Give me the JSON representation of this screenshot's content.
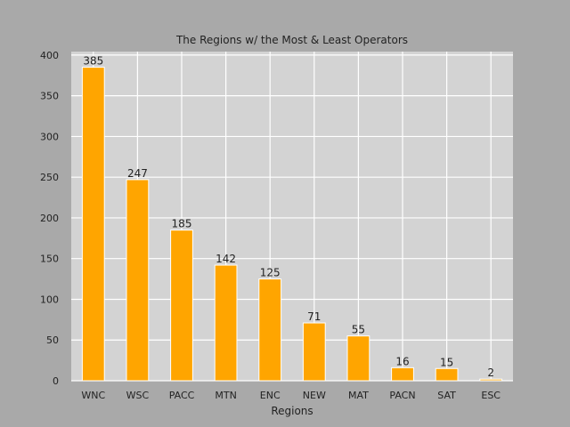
{
  "chart_data": {
    "type": "bar",
    "title": "The Regions w/ the Most & Least Operators",
    "xlabel": "Regions",
    "ylabel": "",
    "categories": [
      "WNC",
      "WSC",
      "PACC",
      "MTN",
      "ENC",
      "NEW",
      "MAT",
      "PACN",
      "SAT",
      "ESC"
    ],
    "values": [
      385,
      247,
      185,
      142,
      125,
      71,
      55,
      16,
      15,
      2
    ],
    "data_labels": [
      "385",
      "247",
      "185",
      "142",
      "125",
      "71",
      "55",
      "16",
      "15",
      "2"
    ],
    "ylim": [
      0,
      404.25
    ],
    "yticks": [
      0,
      50,
      100,
      150,
      200,
      250,
      300,
      350,
      400
    ],
    "ytick_labels": [
      "0",
      "50",
      "100",
      "150",
      "200",
      "250",
      "300",
      "350",
      "400"
    ],
    "grid": true,
    "legend": "none",
    "colors": {
      "bar": "#ffa500",
      "plot_background": "#d3d3d3",
      "figure_background": "#a9a9a9",
      "grid": "#ffffff"
    }
  }
}
